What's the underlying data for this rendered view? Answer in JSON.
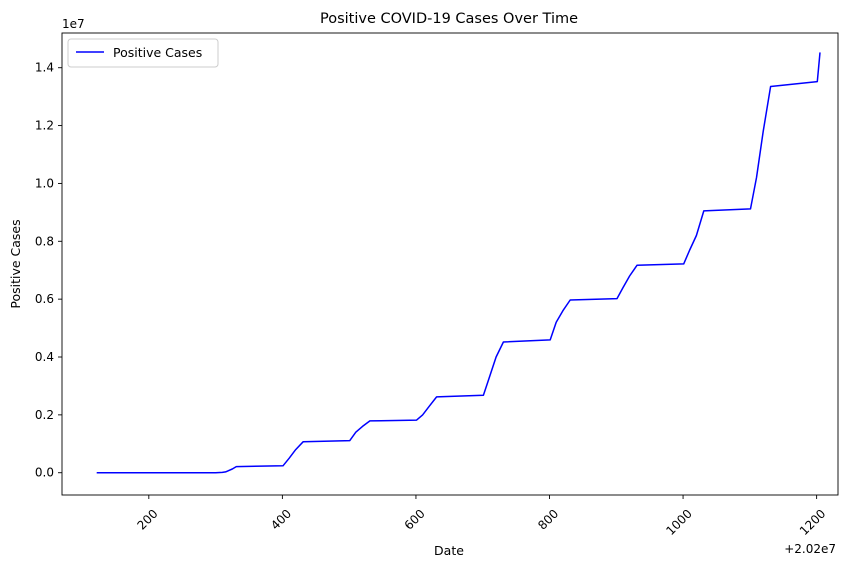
{
  "chart_data": {
    "type": "line",
    "title": "Positive COVID-19 Cases Over Time",
    "xlabel": "Date",
    "ylabel": "Positive Cases",
    "x_offset_text": "+2.02e7",
    "y_offset_text": "1e7",
    "xlim": [
      70,
      1232
    ],
    "ylim": [
      -0.077,
      1.52
    ],
    "x_ticks": [
      200,
      400,
      600,
      800,
      1000,
      1200
    ],
    "x_tick_labels": [
      "200",
      "400",
      "600",
      "800",
      "1000",
      "1200"
    ],
    "y_ticks": [
      0.0,
      0.2,
      0.4,
      0.6,
      0.8,
      1.0,
      1.2,
      1.4
    ],
    "y_tick_labels": [
      "0.0",
      "0.2",
      "0.4",
      "0.6",
      "0.8",
      "1.0",
      "1.2",
      "1.4"
    ],
    "legend_position": "top-left",
    "grid": false,
    "series": [
      {
        "name": "Positive Cases",
        "color": "#0000ff",
        "x": [
          122,
          200,
          300,
          310,
          315,
          320,
          325,
          331,
          401,
          410,
          420,
          431,
          501,
          510,
          520,
          531,
          601,
          610,
          620,
          631,
          701,
          710,
          720,
          731,
          801,
          810,
          820,
          831,
          901,
          910,
          920,
          931,
          1001,
          1010,
          1020,
          1031,
          1101,
          1110,
          1120,
          1131,
          1201,
          1203,
          1205
        ],
        "y": [
          0.0,
          0.0,
          0.0,
          0.001,
          0.003,
          0.008,
          0.013,
          0.021,
          0.024,
          0.05,
          0.08,
          0.107,
          0.111,
          0.14,
          0.16,
          0.179,
          0.182,
          0.2,
          0.23,
          0.262,
          0.268,
          0.33,
          0.4,
          0.452,
          0.459,
          0.52,
          0.56,
          0.597,
          0.602,
          0.64,
          0.68,
          0.717,
          0.722,
          0.77,
          0.82,
          0.905,
          0.912,
          1.02,
          1.18,
          1.335,
          1.352,
          1.4,
          1.453
        ]
      }
    ]
  }
}
